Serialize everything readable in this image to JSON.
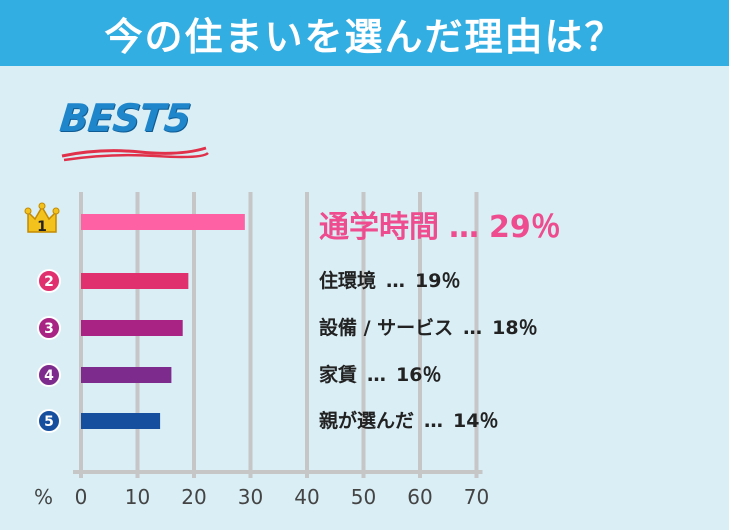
{
  "header": {
    "title": "今の住まいを選んだ理由は？"
  },
  "badge": {
    "text": "BEST5"
  },
  "colors": {
    "header_bg": "#33aee3",
    "background": "#d9eef5",
    "grid": "#c6c6c6",
    "rank1": "#ff62a4",
    "rank2": "#e0306d",
    "rank3": "#a82383",
    "rank4": "#7d2c8e",
    "rank5": "#174f9f",
    "crown": "#f4c21c"
  },
  "icons": {
    "rank1": "crown-icon",
    "rank_other": "number-circle-icon"
  },
  "chart_data": {
    "type": "bar",
    "orientation": "horizontal",
    "categories": [
      "通学時間",
      "住環境",
      "設備 / サービス",
      "家賃",
      "親が選んだ"
    ],
    "values": [
      29,
      19,
      18,
      16,
      14
    ],
    "ranks": [
      "1",
      "2",
      "3",
      "4",
      "5"
    ],
    "value_labels": [
      "29％",
      "19％",
      "18％",
      "16％",
      "14％"
    ],
    "separator": "…",
    "unit_label": "%",
    "xticks": [
      "0",
      "10",
      "20",
      "30",
      "40",
      "50",
      "60",
      "70"
    ],
    "xlim": [
      0,
      70
    ],
    "grid": true
  }
}
